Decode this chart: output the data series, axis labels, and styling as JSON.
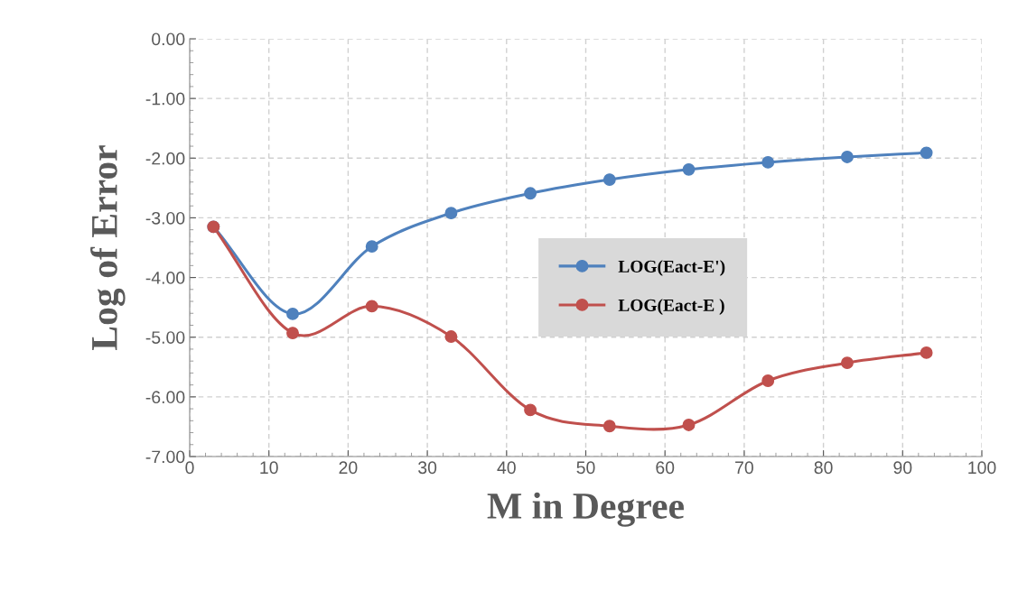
{
  "chart_data": {
    "type": "line",
    "xlabel": "M in Degree",
    "ylabel": "Log of Error",
    "x": [
      3,
      13,
      23,
      33,
      43,
      53,
      63,
      73,
      83,
      93
    ],
    "series": [
      {
        "name": "LOG(Eact-E')",
        "color": "#4f81bd",
        "values": [
          -3.15,
          -4.61,
          -3.48,
          -2.92,
          -2.59,
          -2.36,
          -2.19,
          -2.07,
          -1.98,
          -1.91
        ]
      },
      {
        "name": "LOG(Eact-E )",
        "color": "#c0504d",
        "values": [
          -3.15,
          -4.93,
          -4.48,
          -4.99,
          -6.22,
          -6.49,
          -6.47,
          -5.73,
          -5.43,
          -5.26
        ]
      }
    ],
    "xlim": [
      0,
      100
    ],
    "xticks": [
      0,
      10,
      20,
      30,
      40,
      50,
      60,
      70,
      80,
      90,
      100
    ],
    "ylim": [
      -7,
      0
    ],
    "yticks": [
      {
        "value": -7,
        "label": "-7.00"
      },
      {
        "value": -6,
        "label": "-6.00"
      },
      {
        "value": -5,
        "label": "-5.00"
      },
      {
        "value": -4,
        "label": "-4.00"
      },
      {
        "value": -3,
        "label": "-3.00"
      },
      {
        "value": -2,
        "label": "-2.00"
      },
      {
        "value": -1,
        "label": "-1.00"
      },
      {
        "value": 0,
        "label": "0.00"
      }
    ],
    "grid": true,
    "legend": "center",
    "marker": "circle",
    "line_style": "solid"
  }
}
